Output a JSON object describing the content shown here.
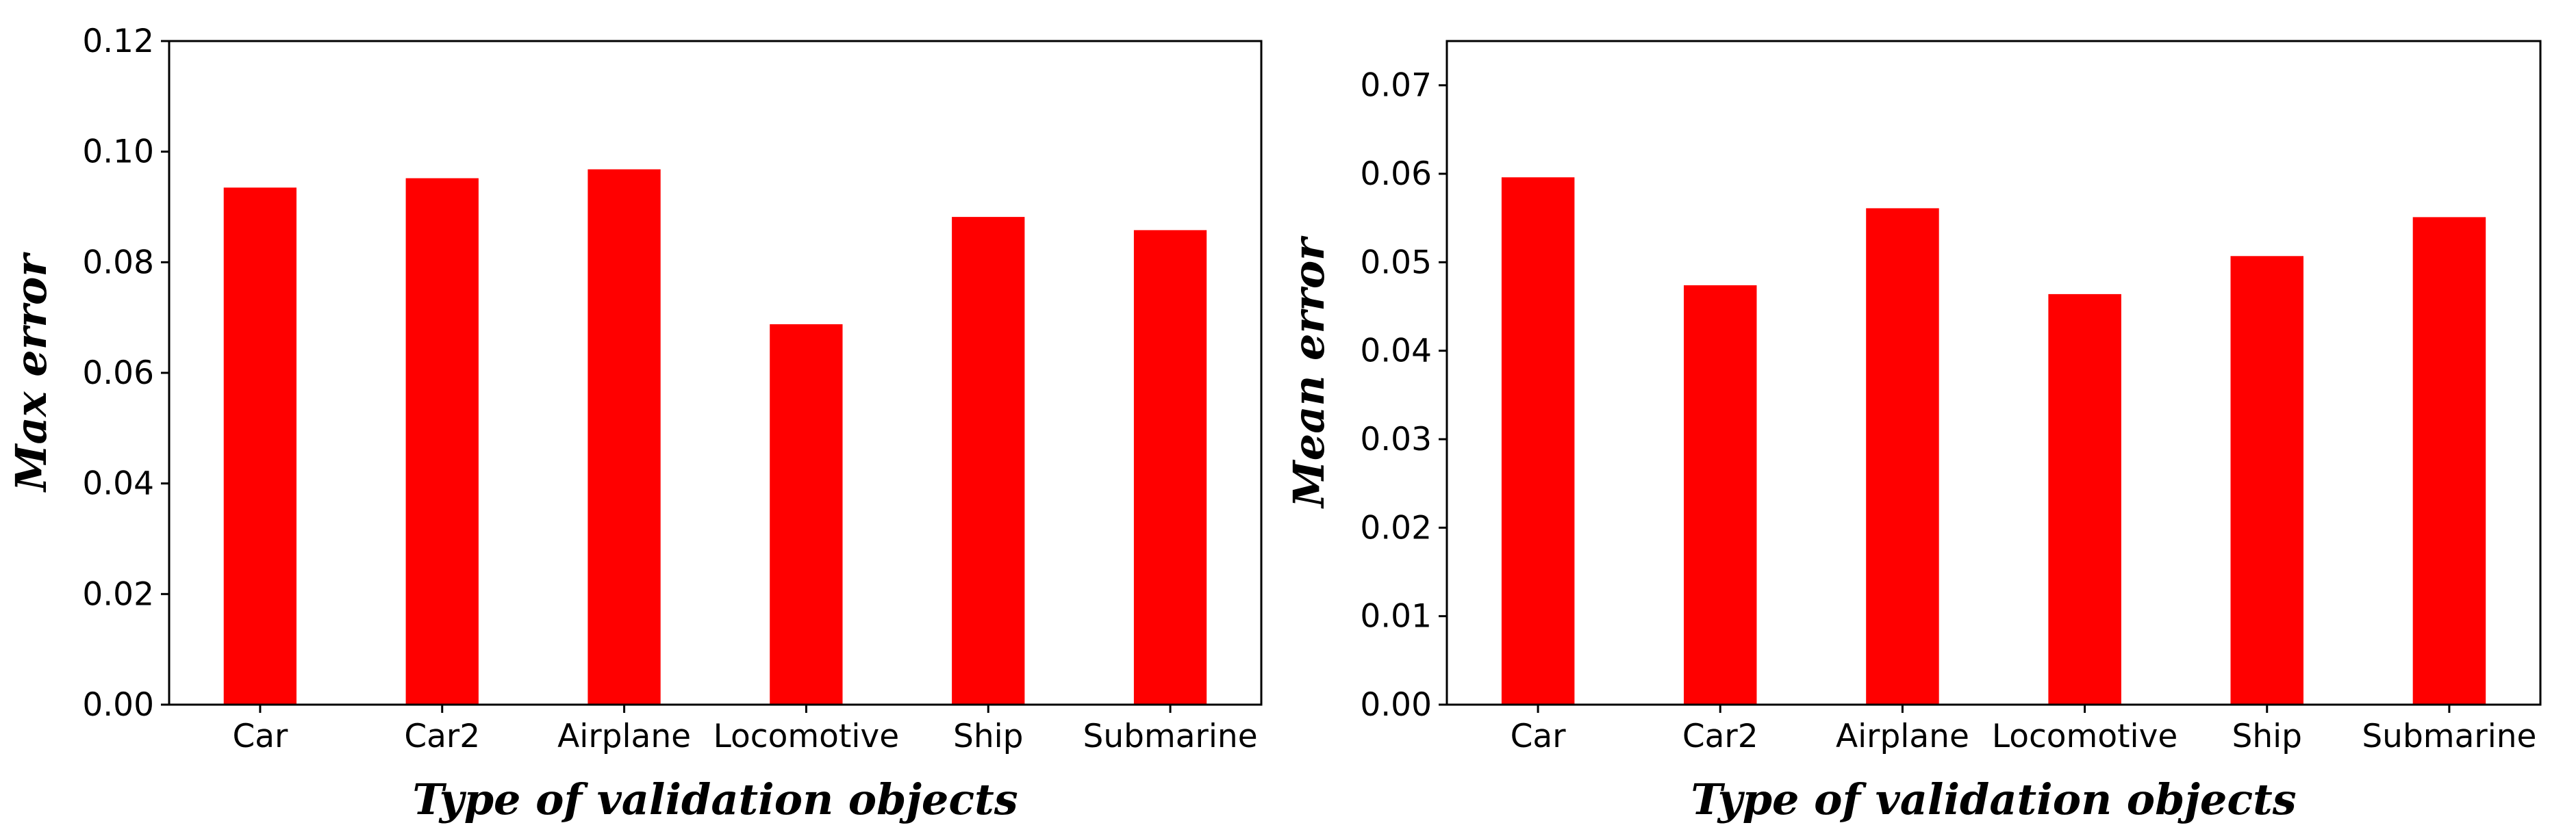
{
  "chart_data": [
    {
      "type": "bar",
      "categories": [
        "Car",
        "Car2",
        "Airplane",
        "Locomotive",
        "Ship",
        "Submarine"
      ],
      "values": [
        0.0935,
        0.0952,
        0.0968,
        0.0688,
        0.0882,
        0.0858
      ],
      "xlabel": "Type of validation objects",
      "ylabel": "Max error",
      "ylim": [
        0,
        0.12
      ],
      "yticks": [
        "0.00",
        "0.02",
        "0.04",
        "0.06",
        "0.08",
        "0.10",
        "0.12"
      ],
      "bar_color": "#ff0000",
      "grid": false
    },
    {
      "type": "bar",
      "categories": [
        "Car",
        "Car2",
        "Airplane",
        "Locomotive",
        "Ship",
        "Submarine"
      ],
      "values": [
        0.0596,
        0.0474,
        0.0561,
        0.0464,
        0.0507,
        0.0551
      ],
      "xlabel": "Type of validation objects",
      "ylabel": "Mean error",
      "ylim": [
        0,
        0.075
      ],
      "yticks": [
        "0.00",
        "0.01",
        "0.02",
        "0.03",
        "0.04",
        "0.05",
        "0.06",
        "0.07"
      ],
      "bar_color": "#ff0000",
      "grid": false
    }
  ]
}
